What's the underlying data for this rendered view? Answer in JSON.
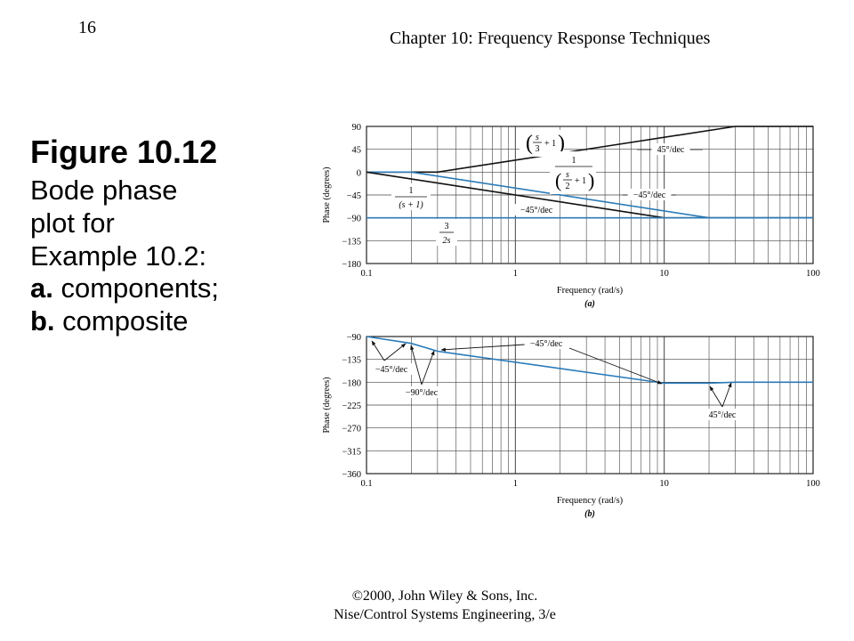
{
  "page_number": "16",
  "chapter": "Chapter 10: Frequency Response Techniques",
  "caption": {
    "figure_label": "Figure 10.12",
    "line1": "Bode phase",
    "line2": "plot for",
    "line3": "Example 10.2:",
    "item_a_letter": "a.",
    "item_a_text": " components;",
    "item_b_letter": "b.",
    "item_b_text": " composite"
  },
  "footer": {
    "copyright": "©2000, John Wiley & Sons, Inc.",
    "book": "Nise/Control Systems Engineering, 3/e"
  },
  "colors": {
    "black_curve": "#111111",
    "blue_curve": "#2b7bb9",
    "grid": "#444444"
  },
  "chart_data": [
    {
      "type": "line",
      "panel_label": "(a)",
      "xlabel": "Frequency (rad/s)",
      "ylabel": "Phase (degrees)",
      "x_scale": "log",
      "xlim": [
        0.1,
        100
      ],
      "ylim": [
        -180,
        90
      ],
      "x_ticks": [
        0.1,
        1,
        10,
        100
      ],
      "x_tick_labels": [
        "0.1",
        "1",
        "10",
        "100"
      ],
      "y_ticks": [
        90,
        45,
        0,
        -45,
        -90,
        -135,
        -180
      ],
      "y_tick_labels": [
        "90",
        "45",
        "0",
        "−45",
        "−90",
        "−135",
        "−180"
      ],
      "grid": true,
      "series": [
        {
          "label": "(s/3 + 1)",
          "color": "black",
          "x": [
            0.1,
            0.3,
            30,
            100
          ],
          "y": [
            0,
            0,
            90,
            90
          ]
        },
        {
          "label": "1/(s/2 + 1)",
          "color": "blue",
          "x": [
            0.1,
            0.2,
            20,
            100
          ],
          "y": [
            0,
            0,
            -90,
            -90
          ]
        },
        {
          "label": "1/(s + 1)",
          "color": "black",
          "x": [
            0.1,
            10,
            100
          ],
          "y": [
            0,
            -90,
            -90
          ]
        },
        {
          "label": "3/(2s)",
          "color": "blue",
          "x": [
            0.1,
            100
          ],
          "y": [
            -90,
            -90
          ]
        }
      ],
      "annotations": [
        {
          "text": "45°/dec",
          "points_to": [
            3,
            17
          ]
        },
        {
          "text": "−45°/dec",
          "points_to": [
            4,
            -45
          ]
        },
        {
          "text": "−45°/dec",
          "points_to": [
            1.5,
            -45
          ]
        }
      ]
    },
    {
      "type": "line",
      "panel_label": "(b)",
      "xlabel": "Frequency (rad/s)",
      "ylabel": "Phase (degrees)",
      "x_scale": "log",
      "xlim": [
        0.1,
        100
      ],
      "ylim": [
        -360,
        -90
      ],
      "x_ticks": [
        0.1,
        1,
        10,
        100
      ],
      "x_tick_labels": [
        "0.1",
        "1",
        "10",
        "100"
      ],
      "y_ticks": [
        -90,
        -135,
        -180,
        -225,
        -270,
        -315,
        -360
      ],
      "y_tick_labels": [
        "−90",
        "−135",
        "−180",
        "−225",
        "−270",
        "−315",
        "−360"
      ],
      "grid": true,
      "series": [
        {
          "label": "composite",
          "color": "blue",
          "x": [
            0.1,
            0.2,
            0.3,
            10,
            20,
            30,
            100
          ],
          "y": [
            -90,
            -103.5,
            -118.9,
            -181.8,
            -181.8,
            -180,
            -180
          ]
        }
      ],
      "annotations": [
        {
          "text": "−45°/dec",
          "points_to": [
            [
              0.14,
              -97
            ],
            [
              0.25,
              -110
            ]
          ]
        },
        {
          "text": "−90°/dec",
          "points_to": [
            [
              0.2,
              -103
            ],
            [
              0.28,
              -115
            ]
          ]
        },
        {
          "text": "−45°/dec",
          "points_to": [
            [
              0.31,
              -117
            ],
            [
              9.5,
              -181
            ]
          ]
        },
        {
          "text": "45°/dec",
          "points_to": [
            [
              25,
              -181
            ]
          ]
        }
      ]
    }
  ]
}
